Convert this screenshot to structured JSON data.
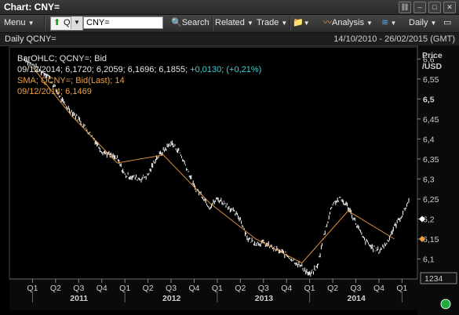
{
  "window": {
    "title": "Chart: CNY="
  },
  "toolbar": {
    "menu": "Menu",
    "ric_prefix": "Q",
    "ric_value": "CNY=",
    "search": "Search",
    "related": "Related",
    "trade": "Trade",
    "analysis": "Analysis",
    "interval": "Daily"
  },
  "chart_header": {
    "left": "Daily QCNY=",
    "right": "14/10/2010 - 26/02/2015 (GMT)"
  },
  "legend": {
    "line1": "BarOHLC; QCNY=; Bid",
    "line2_values": "09/12/2014; 6,1720; 6,2059; 6,1696; 6,1855;",
    "line2_change": "+0,0130; (+0,21%)",
    "line3": "SMA; QCNY=; Bid(Last);  14",
    "line4": "09/12/2014; 6,1469"
  },
  "axis": {
    "y_title_1": "Price",
    "y_title_2": "/USD",
    "y_ticks": [
      "6,6",
      "6,55",
      "6,5",
      "6,45",
      "6,4",
      "6,35",
      "6,3",
      "6,25",
      "6,2",
      "6,15",
      "6,1"
    ],
    "quarter_labels": [
      "Q1",
      "Q2",
      "Q3",
      "Q4",
      "Q1",
      "Q2",
      "Q3",
      "Q4",
      "Q1",
      "Q2",
      "Q3",
      "Q4",
      "Q1",
      "Q2",
      "Q3",
      "Q4",
      "Q1"
    ],
    "year_labels": [
      "2011",
      "2012",
      "2013",
      "2014"
    ],
    "counter": "1234"
  },
  "colors": {
    "price": "#ffffff",
    "sma": "#f0a040",
    "change": "#3fd3d3",
    "legend_orange": "#f0a040"
  },
  "chart_data": {
    "type": "line",
    "series": [
      {
        "name": "QCNY= Bid",
        "x": [
          "2010-12",
          "2011-02",
          "2011-03",
          "2011-05",
          "2011-07",
          "2011-09",
          "2011-10",
          "2011-12",
          "2012-01",
          "2012-03",
          "2012-04",
          "2012-05",
          "2012-06",
          "2012-07",
          "2012-08",
          "2012-09",
          "2012-10",
          "2012-11",
          "2012-12",
          "2013-01",
          "2013-02",
          "2013-04",
          "2013-05",
          "2013-06",
          "2013-07",
          "2013-09",
          "2013-10",
          "2013-12",
          "2014-01",
          "2014-02",
          "2014-03",
          "2014-04",
          "2014-05",
          "2014-06",
          "2014-07",
          "2014-08",
          "2014-09",
          "2014-10",
          "2014-11",
          "2014-12",
          "2015-01",
          "2015-02"
        ],
        "values": [
          6.6,
          6.57,
          6.56,
          6.49,
          6.45,
          6.4,
          6.37,
          6.35,
          6.31,
          6.3,
          6.31,
          6.35,
          6.37,
          6.39,
          6.37,
          6.33,
          6.28,
          6.26,
          6.23,
          6.25,
          6.24,
          6.2,
          6.15,
          6.14,
          6.14,
          6.12,
          6.11,
          6.08,
          6.06,
          6.08,
          6.17,
          6.24,
          6.25,
          6.23,
          6.19,
          6.15,
          6.13,
          6.12,
          6.14,
          6.18,
          6.21,
          6.25
        ]
      },
      {
        "name": "SMA 14",
        "x": [
          "2011-01",
          "2011-06",
          "2011-12",
          "2012-06",
          "2012-12",
          "2013-06",
          "2013-12",
          "2014-06",
          "2014-12"
        ],
        "values": [
          6.58,
          6.46,
          6.34,
          6.36,
          6.24,
          6.15,
          6.09,
          6.22,
          6.15
        ]
      }
    ],
    "ylim": [
      6.05,
      6.63
    ]
  }
}
